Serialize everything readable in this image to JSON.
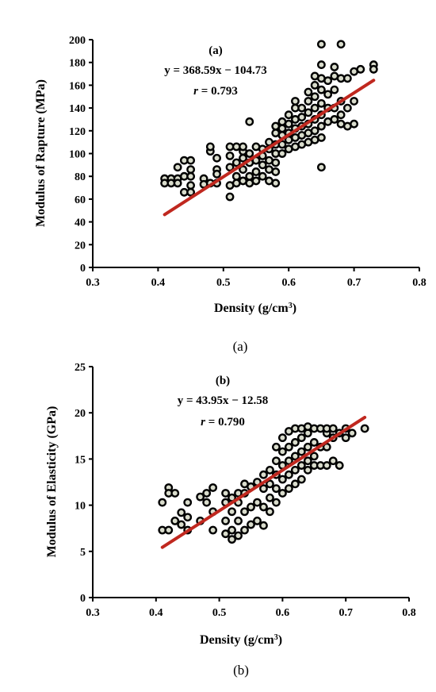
{
  "colors": {
    "marker_fill": "#d9dccc",
    "marker_stroke": "#000000",
    "trend": "#c0281f",
    "axis": "#000000"
  },
  "chart_data": [
    {
      "type": "scatter",
      "panel_label": "(a)",
      "caption": "(a)",
      "equation": "y = 368.59x − 104.73",
      "r_prefix": "r",
      "r_value": " = 0.793",
      "xlabel": "Density (g/cm",
      "xlabel_sup": "3",
      "xlabel_suffix": ")",
      "ylabel": "Modulus of Rapture (MPa)",
      "xlim": [
        0.3,
        0.8
      ],
      "ylim": [
        0,
        200
      ],
      "xticks": [
        0.3,
        0.4,
        0.5,
        0.6,
        0.7,
        0.8
      ],
      "yticks": [
        0,
        20,
        40,
        60,
        80,
        100,
        120,
        140,
        160,
        180,
        200
      ],
      "xtick_labels": [
        "0.3",
        "0.4",
        "0.5",
        "0.6",
        "0.7",
        "0.8"
      ],
      "ytick_labels": [
        "0",
        "20",
        "40",
        "60",
        "80",
        "100",
        "120",
        "140",
        "160",
        "180",
        "200"
      ],
      "trendline": {
        "slope": 368.59,
        "intercept": -104.73,
        "x_range": [
          0.41,
          0.73
        ]
      },
      "points": [
        [
          0.41,
          78
        ],
        [
          0.41,
          74
        ],
        [
          0.42,
          78
        ],
        [
          0.42,
          74
        ],
        [
          0.43,
          78
        ],
        [
          0.43,
          74
        ],
        [
          0.43,
          88
        ],
        [
          0.44,
          94
        ],
        [
          0.44,
          80
        ],
        [
          0.44,
          66
        ],
        [
          0.45,
          94
        ],
        [
          0.45,
          86
        ],
        [
          0.45,
          80
        ],
        [
          0.45,
          72
        ],
        [
          0.45,
          66
        ],
        [
          0.47,
          78
        ],
        [
          0.47,
          73
        ],
        [
          0.48,
          74
        ],
        [
          0.48,
          102
        ],
        [
          0.48,
          106
        ],
        [
          0.49,
          96
        ],
        [
          0.49,
          86
        ],
        [
          0.49,
          82
        ],
        [
          0.49,
          74
        ],
        [
          0.51,
          62
        ],
        [
          0.51,
          72
        ],
        [
          0.51,
          88
        ],
        [
          0.51,
          98
        ],
        [
          0.51,
          106
        ],
        [
          0.52,
          80
        ],
        [
          0.52,
          74
        ],
        [
          0.52,
          92
        ],
        [
          0.52,
          106
        ],
        [
          0.53,
          76
        ],
        [
          0.53,
          86
        ],
        [
          0.53,
          96
        ],
        [
          0.53,
          102
        ],
        [
          0.53,
          106
        ],
        [
          0.54,
          74
        ],
        [
          0.54,
          80
        ],
        [
          0.54,
          92
        ],
        [
          0.54,
          100
        ],
        [
          0.54,
          128
        ],
        [
          0.55,
          76
        ],
        [
          0.55,
          84
        ],
        [
          0.55,
          94
        ],
        [
          0.55,
          106
        ],
        [
          0.56,
          80
        ],
        [
          0.56,
          90
        ],
        [
          0.56,
          98
        ],
        [
          0.56,
          104
        ],
        [
          0.57,
          76
        ],
        [
          0.57,
          86
        ],
        [
          0.57,
          94
        ],
        [
          0.57,
          104
        ],
        [
          0.57,
          110
        ],
        [
          0.58,
          74
        ],
        [
          0.58,
          84
        ],
        [
          0.58,
          92
        ],
        [
          0.58,
          100
        ],
        [
          0.58,
          108
        ],
        [
          0.58,
          118
        ],
        [
          0.58,
          124
        ],
        [
          0.59,
          100
        ],
        [
          0.59,
          108
        ],
        [
          0.59,
          116
        ],
        [
          0.59,
          122
        ],
        [
          0.59,
          128
        ],
        [
          0.6,
          104
        ],
        [
          0.6,
          112
        ],
        [
          0.6,
          118
        ],
        [
          0.6,
          126
        ],
        [
          0.6,
          134
        ],
        [
          0.61,
          106
        ],
        [
          0.61,
          114
        ],
        [
          0.61,
          122
        ],
        [
          0.61,
          130
        ],
        [
          0.61,
          140
        ],
        [
          0.61,
          146
        ],
        [
          0.62,
          108
        ],
        [
          0.62,
          116
        ],
        [
          0.62,
          124
        ],
        [
          0.62,
          132
        ],
        [
          0.62,
          140
        ],
        [
          0.63,
          110
        ],
        [
          0.63,
          118
        ],
        [
          0.63,
          126
        ],
        [
          0.63,
          136
        ],
        [
          0.63,
          146
        ],
        [
          0.63,
          154
        ],
        [
          0.64,
          112
        ],
        [
          0.64,
          120
        ],
        [
          0.64,
          130
        ],
        [
          0.64,
          140
        ],
        [
          0.64,
          150
        ],
        [
          0.64,
          160
        ],
        [
          0.64,
          168
        ],
        [
          0.65,
          114
        ],
        [
          0.65,
          124
        ],
        [
          0.65,
          134
        ],
        [
          0.65,
          144
        ],
        [
          0.65,
          156
        ],
        [
          0.65,
          166
        ],
        [
          0.65,
          178
        ],
        [
          0.65,
          196
        ],
        [
          0.65,
          88
        ],
        [
          0.66,
          128
        ],
        [
          0.66,
          140
        ],
        [
          0.66,
          152
        ],
        [
          0.66,
          164
        ],
        [
          0.67,
          130
        ],
        [
          0.67,
          140
        ],
        [
          0.67,
          156
        ],
        [
          0.67,
          168
        ],
        [
          0.67,
          176
        ],
        [
          0.68,
          126
        ],
        [
          0.68,
          134
        ],
        [
          0.68,
          146
        ],
        [
          0.68,
          166
        ],
        [
          0.68,
          196
        ],
        [
          0.69,
          124
        ],
        [
          0.69,
          140
        ],
        [
          0.69,
          166
        ],
        [
          0.7,
          126
        ],
        [
          0.7,
          146
        ],
        [
          0.7,
          172
        ],
        [
          0.71,
          174
        ],
        [
          0.73,
          178
        ],
        [
          0.73,
          174
        ]
      ]
    },
    {
      "type": "scatter",
      "panel_label": "(b)",
      "caption": "(b)",
      "equation": "y = 43.95x − 12.58",
      "r_prefix": "r",
      "r_value": " = 0.790",
      "xlabel": "Density (g/cm",
      "xlabel_sup": "3",
      "xlabel_suffix": ")",
      "ylabel": "Modulus of Elasticity (GPa)",
      "xlim": [
        0.3,
        0.8
      ],
      "ylim": [
        0,
        25
      ],
      "xticks": [
        0.3,
        0.4,
        0.5,
        0.6,
        0.7,
        0.8
      ],
      "yticks": [
        0,
        5,
        10,
        15,
        20,
        25
      ],
      "xtick_labels": [
        "0.3",
        "0.4",
        "0.5",
        "0.6",
        "0.7",
        "0.8"
      ],
      "ytick_labels": [
        "0",
        "5",
        "10",
        "15",
        "20",
        "25"
      ],
      "trendline": {
        "slope": 43.95,
        "intercept": -12.58,
        "x_range": [
          0.41,
          0.73
        ]
      },
      "points": [
        [
          0.41,
          7.3
        ],
        [
          0.41,
          10.3
        ],
        [
          0.42,
          7.3
        ],
        [
          0.42,
          11.9
        ],
        [
          0.42,
          11.3
        ],
        [
          0.43,
          11.3
        ],
        [
          0.43,
          8.3
        ],
        [
          0.44,
          7.9
        ],
        [
          0.44,
          9.2
        ],
        [
          0.45,
          7.3
        ],
        [
          0.45,
          8.7
        ],
        [
          0.45,
          10.3
        ],
        [
          0.47,
          10.9
        ],
        [
          0.47,
          8.3
        ],
        [
          0.48,
          10.3
        ],
        [
          0.48,
          11.3
        ],
        [
          0.49,
          7.3
        ],
        [
          0.49,
          9.3
        ],
        [
          0.49,
          11.9
        ],
        [
          0.51,
          6.9
        ],
        [
          0.51,
          8.3
        ],
        [
          0.51,
          10.3
        ],
        [
          0.51,
          11.3
        ],
        [
          0.52,
          6.3
        ],
        [
          0.52,
          7.3
        ],
        [
          0.52,
          9.3
        ],
        [
          0.52,
          10.8
        ],
        [
          0.53,
          6.7
        ],
        [
          0.53,
          8.3
        ],
        [
          0.53,
          10.3
        ],
        [
          0.53,
          11.3
        ],
        [
          0.54,
          7.3
        ],
        [
          0.54,
          9.3
        ],
        [
          0.54,
          11.3
        ],
        [
          0.54,
          12.3
        ],
        [
          0.55,
          7.9
        ],
        [
          0.55,
          9.8
        ],
        [
          0.55,
          12.0
        ],
        [
          0.56,
          8.3
        ],
        [
          0.56,
          10.3
        ],
        [
          0.56,
          12.5
        ],
        [
          0.57,
          7.8
        ],
        [
          0.57,
          9.8
        ],
        [
          0.57,
          11.8
        ],
        [
          0.57,
          13.3
        ],
        [
          0.58,
          9.3
        ],
        [
          0.58,
          10.8
        ],
        [
          0.58,
          12.3
        ],
        [
          0.58,
          13.8
        ],
        [
          0.59,
          10.3
        ],
        [
          0.59,
          11.8
        ],
        [
          0.59,
          13.3
        ],
        [
          0.59,
          14.8
        ],
        [
          0.59,
          16.3
        ],
        [
          0.6,
          11.3
        ],
        [
          0.6,
          12.8
        ],
        [
          0.6,
          14.3
        ],
        [
          0.6,
          15.8
        ],
        [
          0.6,
          17.3
        ],
        [
          0.61,
          11.8
        ],
        [
          0.61,
          13.3
        ],
        [
          0.61,
          14.8
        ],
        [
          0.61,
          16.3
        ],
        [
          0.61,
          18.0
        ],
        [
          0.62,
          12.3
        ],
        [
          0.62,
          13.8
        ],
        [
          0.62,
          15.3
        ],
        [
          0.62,
          16.8
        ],
        [
          0.62,
          18.3
        ],
        [
          0.63,
          12.8
        ],
        [
          0.63,
          14.3
        ],
        [
          0.63,
          15.8
        ],
        [
          0.63,
          17.3
        ],
        [
          0.63,
          18.3
        ],
        [
          0.64,
          13.8
        ],
        [
          0.64,
          14.8
        ],
        [
          0.64,
          16.3
        ],
        [
          0.64,
          17.8
        ],
        [
          0.64,
          18.5
        ],
        [
          0.65,
          14.3
        ],
        [
          0.65,
          15.3
        ],
        [
          0.65,
          16.8
        ],
        [
          0.65,
          18.3
        ],
        [
          0.66,
          14.3
        ],
        [
          0.66,
          16.3
        ],
        [
          0.66,
          18.3
        ],
        [
          0.67,
          14.3
        ],
        [
          0.67,
          16.3
        ],
        [
          0.67,
          17.8
        ],
        [
          0.67,
          18.3
        ],
        [
          0.68,
          14.8
        ],
        [
          0.68,
          17.3
        ],
        [
          0.68,
          18.3
        ],
        [
          0.69,
          14.3
        ],
        [
          0.69,
          17.8
        ],
        [
          0.7,
          17.3
        ],
        [
          0.7,
          18.3
        ],
        [
          0.71,
          17.8
        ],
        [
          0.73,
          18.3
        ]
      ]
    }
  ]
}
